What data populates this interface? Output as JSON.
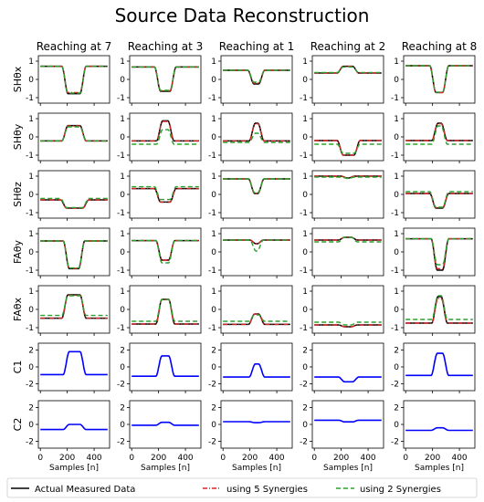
{
  "title": "Source Data Reconstruction",
  "chart_data": {
    "type": "line",
    "title": "Source Data Reconstruction",
    "columns": [
      "Reaching at 7",
      "Reaching at 3",
      "Reaching at 1",
      "Reaching at 2",
      "Reaching at 8"
    ],
    "rows": [
      {
        "label": "SHθx",
        "ylim": [
          -1.3,
          1.3
        ],
        "yticks": [
          -1,
          0,
          1
        ]
      },
      {
        "label": "SHθy",
        "ylim": [
          -1.3,
          1.3
        ],
        "yticks": [
          -1,
          0,
          1
        ]
      },
      {
        "label": "SHθz",
        "ylim": [
          -1.3,
          1.3
        ],
        "yticks": [
          -1,
          0,
          1
        ]
      },
      {
        "label": "FAθy",
        "ylim": [
          -1.3,
          1.3
        ],
        "yticks": [
          -1,
          0,
          1
        ]
      },
      {
        "label": "FAθx",
        "ylim": [
          -1.3,
          1.3
        ],
        "yticks": [
          -1,
          0,
          1
        ]
      },
      {
        "label": "C1",
        "ylim": [
          -2.8,
          2.8
        ],
        "yticks": [
          -2,
          0,
          2
        ]
      },
      {
        "label": "C2",
        "ylim": [
          -2.8,
          2.8
        ],
        "yticks": [
          -2,
          0,
          2
        ]
      }
    ],
    "xlabel": "Samples [n]",
    "xlim": [
      -15,
      515
    ],
    "xticks": [
      0,
      200,
      400
    ],
    "series": [
      {
        "name": "Actual Measured Data",
        "color": "#000000",
        "dash": "solid"
      },
      {
        "name": "using 5 Synergies",
        "color": "#d62728",
        "dash": "dashdot"
      },
      {
        "name": "using 2 Synergies",
        "color": "#2ca02c",
        "dash": "dashed"
      }
    ],
    "panels": [
      [
        {
          "base": 0.72,
          "peak": -0.78,
          "start": 160,
          "end": 340,
          "s5": [
            0.72,
            -0.72
          ],
          "s2": [
            0.72,
            -0.75
          ]
        },
        {
          "base": -0.22,
          "peak": 0.62,
          "start": 160,
          "end": 340,
          "s5": [
            -0.22,
            0.6
          ],
          "s2": [
            -0.22,
            0.55
          ]
        },
        {
          "base": -0.3,
          "peak": -0.75,
          "start": 150,
          "end": 360,
          "s5": [
            -0.3,
            -0.75
          ],
          "s2": [
            -0.22,
            -0.72
          ]
        },
        {
          "base": 0.6,
          "peak": -0.92,
          "start": 170,
          "end": 330,
          "s5": [
            0.6,
            -0.9
          ],
          "s2": [
            0.6,
            -0.88
          ]
        },
        {
          "base": -0.48,
          "peak": 0.8,
          "start": 160,
          "end": 340,
          "s5": [
            -0.48,
            0.78
          ],
          "s2": [
            -0.33,
            0.75
          ]
        },
        {
          "base": -0.9,
          "peak": 1.8,
          "start": 170,
          "end": 340,
          "s5": [
            -0.9,
            1.8
          ],
          "s2": [
            -0.9,
            1.8
          ]
        },
        {
          "base": -0.6,
          "peak": 0.0,
          "start": 170,
          "end": 340,
          "s5": [
            -0.6,
            0.0
          ],
          "s2": [
            -0.6,
            0.0
          ]
        }
      ],
      [
        {
          "base": 0.68,
          "peak": -0.65,
          "start": 170,
          "end": 330,
          "s5": [
            0.68,
            -0.62
          ],
          "s2": [
            0.68,
            -0.6
          ]
        },
        {
          "base": -0.22,
          "peak": 0.88,
          "start": 185,
          "end": 315,
          "s5": [
            -0.22,
            0.85
          ],
          "s2": [
            -0.4,
            0.4
          ]
        },
        {
          "base": 0.32,
          "peak": -0.42,
          "start": 170,
          "end": 330,
          "s5": [
            0.32,
            -0.42
          ],
          "s2": [
            0.42,
            -0.28
          ]
        },
        {
          "base": 0.62,
          "peak": -0.45,
          "start": 180,
          "end": 320,
          "s5": [
            0.62,
            -0.45
          ],
          "s2": [
            0.62,
            -0.6
          ]
        },
        {
          "base": -0.8,
          "peak": 0.55,
          "start": 180,
          "end": 320,
          "s5": [
            -0.8,
            0.55
          ],
          "s2": [
            -0.65,
            0.55
          ]
        },
        {
          "base": -1.1,
          "peak": 1.3,
          "start": 180,
          "end": 320,
          "s5": [
            -1.1,
            1.3
          ],
          "s2": [
            -1.1,
            1.3
          ]
        },
        {
          "base": -0.1,
          "peak": 0.25,
          "start": 180,
          "end": 320,
          "s5": [
            -0.1,
            0.25
          ],
          "s2": [
            -0.1,
            0.25
          ]
        }
      ],
      [
        {
          "base": 0.5,
          "peak": -0.25,
          "start": 185,
          "end": 310,
          "s5": [
            0.5,
            -0.2
          ],
          "s2": [
            0.5,
            -0.15
          ]
        },
        {
          "base": -0.22,
          "peak": 0.75,
          "start": 195,
          "end": 305,
          "s5": [
            -0.22,
            0.72
          ],
          "s2": [
            -0.3,
            0.2
          ]
        },
        {
          "base": 0.85,
          "peak": 0.05,
          "start": 190,
          "end": 305,
          "s5": [
            0.85,
            0.05
          ],
          "s2": [
            0.85,
            0.1
          ]
        },
        {
          "base": 0.65,
          "peak": 0.45,
          "start": 200,
          "end": 300,
          "s5": [
            0.65,
            0.45
          ],
          "s2": [
            0.65,
            0.05
          ]
        },
        {
          "base": -0.82,
          "peak": -0.25,
          "start": 190,
          "end": 310,
          "s5": [
            -0.82,
            -0.25
          ],
          "s2": [
            -0.65,
            -0.3
          ]
        },
        {
          "base": -1.2,
          "peak": 0.35,
          "start": 195,
          "end": 310,
          "s5": [
            -1.2,
            0.35
          ],
          "s2": [
            -1.2,
            0.35
          ]
        },
        {
          "base": 0.32,
          "peak": 0.2,
          "start": 195,
          "end": 310,
          "s5": [
            0.32,
            0.2
          ],
          "s2": [
            0.32,
            0.2
          ]
        }
      ],
      [
        {
          "base": 0.35,
          "peak": 0.72,
          "start": 170,
          "end": 330,
          "s5": [
            0.35,
            0.72
          ],
          "s2": [
            0.38,
            0.68
          ]
        },
        {
          "base": -0.2,
          "peak": -1.0,
          "start": 170,
          "end": 340,
          "s5": [
            -0.2,
            -1.0
          ],
          "s2": [
            -0.4,
            -0.9
          ]
        },
        {
          "base": 1.0,
          "peak": 0.9,
          "start": 200,
          "end": 300,
          "s5": [
            1.0,
            0.9
          ],
          "s2": [
            0.95,
            0.88
          ]
        },
        {
          "base": 0.65,
          "peak": 0.8,
          "start": 180,
          "end": 320,
          "s5": [
            0.65,
            0.8
          ],
          "s2": [
            0.55,
            0.8
          ]
        },
        {
          "base": -0.85,
          "peak": -0.95,
          "start": 180,
          "end": 320,
          "s5": [
            -0.85,
            -0.95
          ],
          "s2": [
            -0.7,
            -0.85
          ]
        },
        {
          "base": -1.2,
          "peak": -1.75,
          "start": 180,
          "end": 330,
          "s5": [
            -1.2,
            -1.75
          ],
          "s2": [
            -1.2,
            -1.75
          ]
        },
        {
          "base": 0.5,
          "peak": 0.3,
          "start": 180,
          "end": 330,
          "s5": [
            0.5,
            0.3
          ],
          "s2": [
            0.5,
            0.3
          ]
        }
      ],
      [
        {
          "base": 0.75,
          "peak": -0.72,
          "start": 180,
          "end": 320,
          "s5": [
            0.75,
            -0.72
          ],
          "s2": [
            0.75,
            -0.7
          ]
        },
        {
          "base": -0.2,
          "peak": 0.75,
          "start": 195,
          "end": 310,
          "s5": [
            -0.2,
            0.72
          ],
          "s2": [
            -0.4,
            0.6
          ]
        },
        {
          "base": 0.05,
          "peak": -0.75,
          "start": 180,
          "end": 320,
          "s5": [
            0.05,
            -0.72
          ],
          "s2": [
            0.15,
            -0.7
          ]
        },
        {
          "base": 0.72,
          "peak": -1.0,
          "start": 190,
          "end": 320,
          "s5": [
            0.72,
            -0.92
          ],
          "s2": [
            0.72,
            -0.7
          ]
        },
        {
          "base": -0.75,
          "peak": 0.7,
          "start": 195,
          "end": 310,
          "s5": [
            -0.75,
            0.6
          ],
          "s2": [
            -0.55,
            0.75
          ]
        },
        {
          "base": -1.0,
          "peak": 1.6,
          "start": 190,
          "end": 320,
          "s5": [
            -1.0,
            1.6
          ],
          "s2": [
            -1.0,
            1.6
          ]
        },
        {
          "base": -0.7,
          "peak": -0.4,
          "start": 190,
          "end": 320,
          "s5": [
            -0.7,
            -0.4
          ],
          "s2": [
            -0.7,
            -0.4
          ]
        }
      ]
    ],
    "curve_color_components": "#0000ff"
  },
  "legend": {
    "items": [
      {
        "label": "Actual Measured Data"
      },
      {
        "label": "using 5 Synergies"
      },
      {
        "label": "using 2 Synergies"
      }
    ]
  }
}
